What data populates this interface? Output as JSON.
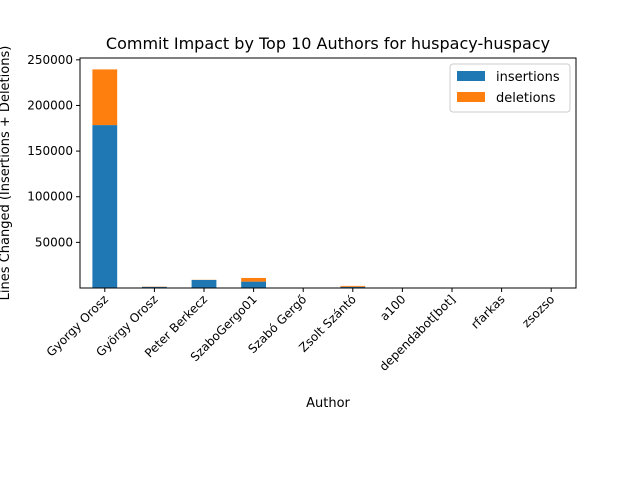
{
  "chart_data": {
    "type": "bar",
    "stacked": true,
    "title": "Commit Impact by Top 10 Authors for huspacy-huspacy",
    "xlabel": "Author",
    "ylabel": "Lines Changed (Insertions + Deletions)",
    "categories": [
      "Gyorgy Orosz",
      "György Orosz",
      "Peter Berkecz",
      "SzaboGergo01",
      "Szabó Gergő",
      "Zsolt Szántó",
      "a100",
      "dependabot[bot]",
      "rfarkas",
      "zsozso"
    ],
    "series": [
      {
        "name": "insertions",
        "color": "#1f77b4",
        "values": [
          178500,
          1200,
          8800,
          7000,
          300,
          1300,
          100,
          80,
          50,
          40
        ]
      },
      {
        "name": "deletions",
        "color": "#ff7f0e",
        "values": [
          61000,
          300,
          200,
          4000,
          100,
          1000,
          20,
          20,
          10,
          10
        ]
      }
    ],
    "ylim": [
      0,
      252000
    ],
    "yticks": [
      50000,
      100000,
      150000,
      200000,
      250000
    ],
    "ytick_labels": [
      "50000",
      "100000",
      "150000",
      "200000",
      "250000"
    ],
    "grid": false,
    "legend_position": "top-right"
  }
}
